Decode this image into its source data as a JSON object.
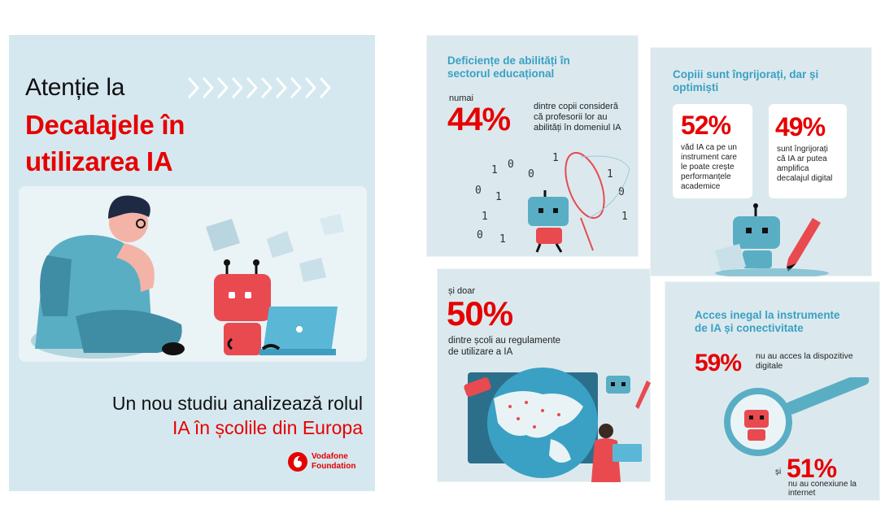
{
  "left": {
    "title_line1": "Atenție la",
    "title_line2": "Decalajele în",
    "title_line3": "utilizarea IA",
    "subtitle_line1": "Un nou studiu analizează rolul",
    "subtitle_line2": "IA în școlile din Europa",
    "logo_line1": "Vodafone",
    "logo_line2": "Foundation"
  },
  "panel1": {
    "heading_line1": "Deficiențe de abilități în",
    "heading_line2": "sectorul educațional",
    "prefix": "numai",
    "percent": "44%",
    "desc_line1": "dintre copii consideră",
    "desc_line2": "că profesorii lor au",
    "desc_line3": "abilități în domeniul IA"
  },
  "panel2": {
    "heading_line1": "Copiii sunt îngrijorați, dar și",
    "heading_line2": "optimiști",
    "card1_percent": "52%",
    "card1_line1": "văd IA ca pe un",
    "card1_line2": "instrument care",
    "card1_line3": "le poate crește",
    "card1_line4": "performanțele",
    "card1_line5": "academice",
    "card2_percent": "49%",
    "card2_line1": "sunt îngrijorați",
    "card2_line2": "că IA ar putea",
    "card2_line3": "amplifica",
    "card2_line4": "decalajul digital"
  },
  "panel3": {
    "prefix": "și doar",
    "percent": "50%",
    "desc_line1": "dintre școli au regulamente",
    "desc_line2": "de utilizare a IA"
  },
  "panel4": {
    "heading_line1": "Acces inegal la instrumente",
    "heading_line2": "de IA și conectivitate",
    "stat1_percent": "59%",
    "stat1_line1": "nu au acces la dispozitive",
    "stat1_line2": "digitale",
    "stat2_prefix": "și",
    "stat2_percent": "51%",
    "stat2_line1": "nu au conexiune la",
    "stat2_line2": "internet"
  },
  "colors": {
    "accent_red": "#e60000",
    "heading_blue": "#3aa0c4",
    "panel_bg": "#dbe9ee"
  }
}
